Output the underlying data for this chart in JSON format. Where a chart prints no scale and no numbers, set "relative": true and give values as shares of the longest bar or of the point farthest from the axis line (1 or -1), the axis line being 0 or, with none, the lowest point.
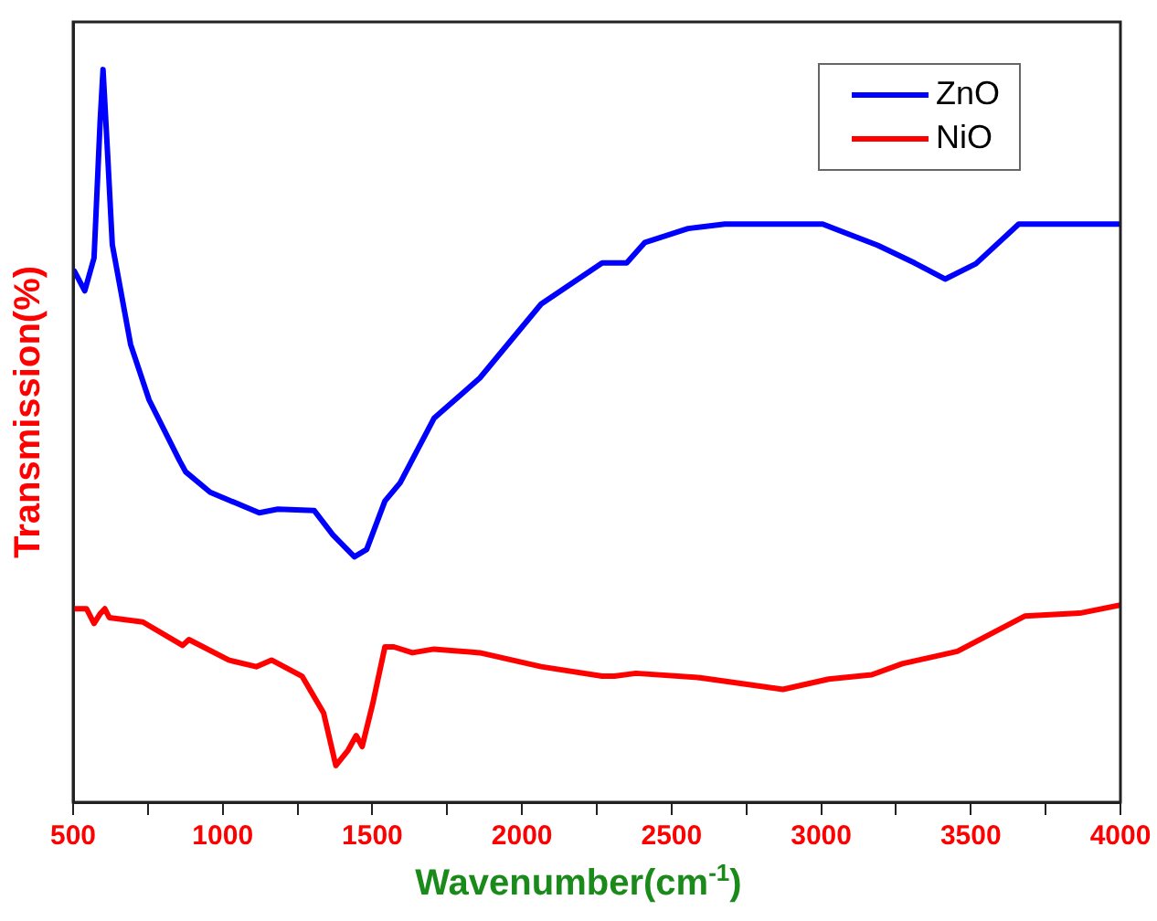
{
  "chart_data": {
    "type": "line",
    "xlabel": "Wavenumber(cm$^{-1}$)",
    "ylabel": "Transmission(%)",
    "relative": true,
    "xlim": [
      500,
      4000
    ],
    "xticks": [
      500,
      {
        "value": 750,
        "label": null
      },
      1000,
      {
        "value": 1250,
        "label": null
      },
      1500,
      {
        "value": 1750,
        "label": null
      },
      2000,
      {
        "value": 2250,
        "label": null
      },
      2500,
      {
        "value": 2750,
        "label": null
      },
      3000,
      {
        "value": 3250,
        "label": null
      },
      3500,
      {
        "value": 3750,
        "label": null
      },
      4000
    ],
    "grid": false,
    "legend": "top right",
    "marker": "none",
    "line_style": "solid",
    "series": [
      {
        "name": "ZnO",
        "color": "#0000ff",
        "x": [
          504,
          539,
          570,
          590,
          600,
          615,
          631,
          692,
          754,
          856,
          876,
          958,
          1122,
          1184,
          1306,
          1368,
          1440,
          1481,
          1542,
          1593,
          1706,
          1859,
          2064,
          2268,
          2289,
          2350,
          2411,
          2555,
          2678,
          3005,
          3189,
          3312,
          3414,
          3517,
          3660,
          4000
        ],
        "values": [
          0.725,
          0.698,
          0.743,
          0.927,
          1.0,
          0.887,
          0.761,
          0.625,
          0.549,
          0.466,
          0.451,
          0.423,
          0.395,
          0.4,
          0.398,
          0.365,
          0.335,
          0.345,
          0.411,
          0.436,
          0.524,
          0.579,
          0.68,
          0.736,
          0.736,
          0.736,
          0.764,
          0.783,
          0.789,
          0.789,
          0.76,
          0.736,
          0.714,
          0.735,
          0.789,
          0.789
        ]
      },
      {
        "name": "NiO",
        "color": "#ff0000",
        "x": [
          504,
          545,
          570,
          590,
          606,
          621,
          733,
          866,
          887,
          1020,
          1112,
          1163,
          1265,
          1337,
          1378,
          1419,
          1446,
          1466,
          1501,
          1542,
          1572,
          1634,
          1706,
          1859,
          2064,
          2268,
          2309,
          2381,
          2595,
          2872,
          3025,
          3169,
          3271,
          3455,
          3680,
          3864,
          4000
        ],
        "values": [
          0.264,
          0.264,
          0.244,
          0.257,
          0.264,
          0.252,
          0.246,
          0.214,
          0.222,
          0.194,
          0.185,
          0.194,
          0.172,
          0.122,
          0.05,
          0.071,
          0.091,
          0.076,
          0.134,
          0.212,
          0.212,
          0.204,
          0.209,
          0.204,
          0.185,
          0.172,
          0.172,
          0.176,
          0.17,
          0.154,
          0.168,
          0.174,
          0.189,
          0.206,
          0.254,
          0.258,
          0.269
        ]
      }
    ]
  }
}
